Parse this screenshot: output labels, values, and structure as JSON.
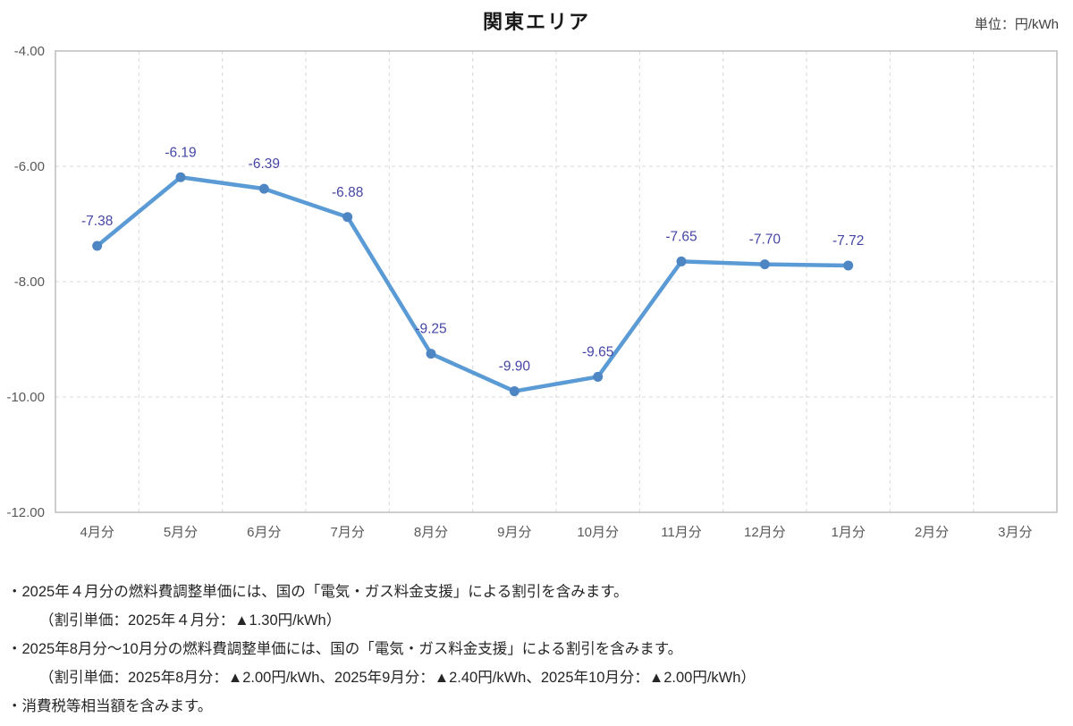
{
  "title": "関東エリア",
  "unit_label": "単位：円/kWh",
  "chart_data": {
    "type": "line",
    "title": "関東エリア",
    "unit": "単位：円/kWh",
    "categories": [
      "4月分",
      "5月分",
      "6月分",
      "7月分",
      "8月分",
      "9月分",
      "10月分",
      "11月分",
      "12月分",
      "1月分",
      "2月分",
      "3月分"
    ],
    "series": [
      {
        "name": "燃料費調整単価",
        "values": [
          -7.38,
          -6.19,
          -6.39,
          -6.88,
          -9.25,
          -9.9,
          -9.65,
          -7.65,
          -7.7,
          -7.72,
          null,
          null
        ]
      }
    ],
    "data_labels": [
      "-7.38",
      "-6.19",
      "-6.39",
      "-6.88",
      "-9.25",
      "-9.90",
      "-9.65",
      "-7.65",
      "-7.70",
      "-7.72"
    ],
    "ylabel": "",
    "xlabel": "",
    "ylim": [
      -12,
      -4
    ],
    "y_ticks": [
      {
        "value": -4,
        "label": "-4.00"
      },
      {
        "value": -6,
        "label": "-6.00"
      },
      {
        "value": -8,
        "label": "-8.00"
      },
      {
        "value": -10,
        "label": "-10.00"
      },
      {
        "value": -12,
        "label": "-12.00"
      }
    ],
    "grid": true,
    "legend_position": "none",
    "colors": {
      "line": "#5B9BD5",
      "marker": "#4E86C4",
      "data_label": "#4646A6",
      "axis_text": "#595959",
      "gridline": "#D9D9D9",
      "border": "#BDBDBD"
    }
  },
  "notes": [
    {
      "text": "・2025年４月分の燃料費調整単価には、国の「電気・ガス料金支援」による割引を含みます。",
      "indent": false
    },
    {
      "text": "（割引単価：2025年４月分：▲1.30円/kWh）",
      "indent": true
    },
    {
      "text": "・2025年8月分～10月分の燃料費調整単価には、国の「電気・ガス料金支援」による割引を含みます。",
      "indent": false
    },
    {
      "text": "（割引単価：2025年8月分：▲2.00円/kWh、2025年9月分：▲2.40円/kWh、2025年10月分：▲2.00円/kWh）",
      "indent": true
    },
    {
      "text": "・消費税等相当額を含みます。",
      "indent": false
    }
  ]
}
